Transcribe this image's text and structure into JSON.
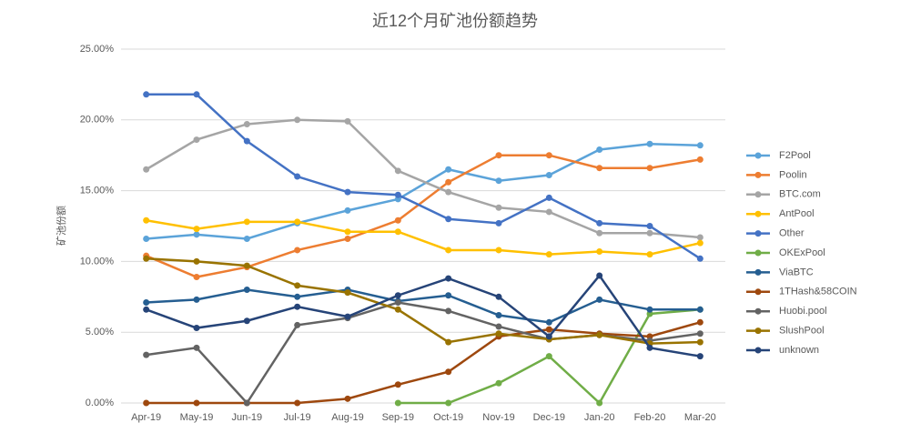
{
  "chart_data": {
    "type": "line",
    "title": "近12个月矿池份额趋势",
    "y_label": "矿池份额",
    "categories": [
      "Apr-19",
      "May-19",
      "Jun-19",
      "Jul-19",
      "Aug-19",
      "Sep-19",
      "Oct-19",
      "Nov-19",
      "Dec-19",
      "Jan-20",
      "Feb-20",
      "Mar-20"
    ],
    "ylim": [
      0,
      25
    ],
    "yticks": [
      {
        "value": 0,
        "label": "0.00%"
      },
      {
        "value": 5,
        "label": "5.00%"
      },
      {
        "value": 10,
        "label": "10.00%"
      },
      {
        "value": 15,
        "label": "15.00%"
      },
      {
        "value": 20,
        "label": "20.00%"
      },
      {
        "value": 25,
        "label": "25.00%"
      }
    ],
    "grid": true,
    "legend": "right",
    "series": [
      {
        "name": "F2Pool",
        "color": "#5ba3d9",
        "values": [
          11.6,
          11.9,
          11.6,
          12.7,
          13.6,
          14.4,
          16.5,
          15.7,
          16.1,
          17.9,
          18.3,
          18.2
        ]
      },
      {
        "name": "Poolin",
        "color": "#ed7d31",
        "values": [
          10.4,
          8.9,
          9.6,
          10.8,
          11.6,
          12.9,
          15.6,
          17.5,
          17.5,
          16.6,
          16.6,
          17.2
        ]
      },
      {
        "name": "BTC.com",
        "color": "#a5a5a5",
        "values": [
          16.5,
          18.6,
          19.7,
          20.0,
          19.9,
          16.4,
          14.9,
          13.8,
          13.5,
          12.0,
          12.0,
          11.7
        ]
      },
      {
        "name": "AntPool",
        "color": "#ffc000",
        "values": [
          12.9,
          12.3,
          12.8,
          12.8,
          12.1,
          12.1,
          10.8,
          10.8,
          10.5,
          10.7,
          10.5,
          11.3
        ]
      },
      {
        "name": "Other",
        "color": "#4472c4",
        "values": [
          21.8,
          21.8,
          18.5,
          16.0,
          14.9,
          14.7,
          13.0,
          12.7,
          14.5,
          12.7,
          12.5,
          10.2
        ]
      },
      {
        "name": "OKExPool",
        "color": "#70ad47",
        "values": [
          null,
          null,
          null,
          null,
          null,
          0,
          0,
          1.4,
          3.3,
          0,
          6.3,
          6.6
        ]
      },
      {
        "name": "ViaBTC",
        "color": "#255e91",
        "values": [
          7.1,
          7.3,
          8.0,
          7.5,
          8.0,
          7.2,
          7.6,
          6.2,
          5.7,
          7.3,
          6.6,
          6.6
        ]
      },
      {
        "name": "1THash&58COIN",
        "color": "#9e480e",
        "values": [
          0,
          0,
          0,
          0,
          0.3,
          1.3,
          2.2,
          4.7,
          5.2,
          4.9,
          4.7,
          5.7
        ]
      },
      {
        "name": "Huobi.pool",
        "color": "#636363",
        "values": [
          3.4,
          3.9,
          0,
          5.5,
          6.0,
          7.1,
          6.5,
          5.4,
          4.5,
          4.8,
          4.4,
          4.9
        ]
      },
      {
        "name": "SlushPool",
        "color": "#997300",
        "values": [
          10.2,
          10.0,
          9.7,
          8.3,
          7.8,
          6.6,
          4.3,
          4.9,
          4.5,
          4.8,
          4.2,
          4.3
        ]
      },
      {
        "name": "unknown",
        "color": "#264478",
        "values": [
          6.6,
          5.3,
          5.8,
          6.8,
          6.1,
          7.6,
          8.8,
          7.5,
          4.7,
          9.0,
          3.9,
          3.3
        ]
      }
    ]
  }
}
